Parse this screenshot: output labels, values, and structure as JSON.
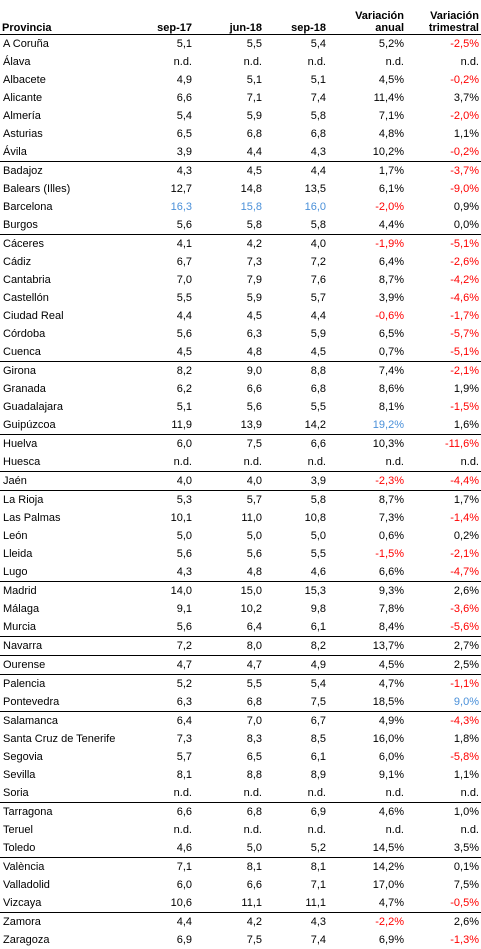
{
  "headers": {
    "provincia": "Provincia",
    "sep17": "sep-17",
    "jun18": "jun-18",
    "sep18": "sep-18",
    "var_anual_1": "Variación",
    "var_anual_2": "anual",
    "var_trim_1": "Variación",
    "var_trim_2": "trimestral"
  },
  "colors": {
    "negative": "#ff0000",
    "highlight": "#4a90d9",
    "text": "#000000"
  },
  "rows": [
    {
      "name": "A Coruña",
      "sep17": "5,1",
      "jun18": "5,5",
      "sep18": "5,4",
      "anual": "5,2%",
      "trim": "-2,5%"
    },
    {
      "name": "Álava",
      "sep17": "n.d.",
      "jun18": "n.d.",
      "sep18": "n.d.",
      "anual": "n.d.",
      "trim": "n.d."
    },
    {
      "name": "Albacete",
      "sep17": "4,9",
      "jun18": "5,1",
      "sep18": "5,1",
      "anual": "4,5%",
      "trim": "-0,2%"
    },
    {
      "name": "Alicante",
      "sep17": "6,6",
      "jun18": "7,1",
      "sep18": "7,4",
      "anual": "11,4%",
      "trim": "3,7%"
    },
    {
      "name": "Almería",
      "sep17": "5,4",
      "jun18": "5,9",
      "sep18": "5,8",
      "anual": "7,1%",
      "trim": "-2,0%"
    },
    {
      "name": "Asturias",
      "sep17": "6,5",
      "jun18": "6,8",
      "sep18": "6,8",
      "anual": "4,8%",
      "trim": "1,1%"
    },
    {
      "name": "Ávila",
      "sep17": "3,9",
      "jun18": "4,4",
      "sep18": "4,3",
      "anual": "10,2%",
      "trim": "-0,2%"
    },
    {
      "name": "Badajoz",
      "sep17": "4,3",
      "jun18": "4,5",
      "sep18": "4,4",
      "anual": "1,7%",
      "trim": "-3,7%"
    },
    {
      "name": "Balears (Illes)",
      "sep17": "12,7",
      "jun18": "14,8",
      "sep18": "13,5",
      "anual": "6,1%",
      "trim": "-9,0%"
    },
    {
      "name": "Barcelona",
      "sep17": "16,3",
      "jun18": "15,8",
      "sep18": "16,0",
      "anual": "-2,0%",
      "trim": "0,9%"
    },
    {
      "name": "Burgos",
      "sep17": "5,6",
      "jun18": "5,8",
      "sep18": "5,8",
      "anual": "4,4%",
      "trim": "0,0%"
    },
    {
      "name": "Cáceres",
      "sep17": "4,1",
      "jun18": "4,2",
      "sep18": "4,0",
      "anual": "-1,9%",
      "trim": "-5,1%"
    },
    {
      "name": "Cádiz",
      "sep17": "6,7",
      "jun18": "7,3",
      "sep18": "7,2",
      "anual": "6,4%",
      "trim": "-2,6%"
    },
    {
      "name": "Cantabria",
      "sep17": "7,0",
      "jun18": "7,9",
      "sep18": "7,6",
      "anual": "8,7%",
      "trim": "-4,2%"
    },
    {
      "name": "Castellón",
      "sep17": "5,5",
      "jun18": "5,9",
      "sep18": "5,7",
      "anual": "3,9%",
      "trim": "-4,6%"
    },
    {
      "name": "Ciudad Real",
      "sep17": "4,4",
      "jun18": "4,5",
      "sep18": "4,4",
      "anual": "-0,6%",
      "trim": "-1,7%"
    },
    {
      "name": "Córdoba",
      "sep17": "5,6",
      "jun18": "6,3",
      "sep18": "5,9",
      "anual": "6,5%",
      "trim": "-5,7%"
    },
    {
      "name": "Cuenca",
      "sep17": "4,5",
      "jun18": "4,8",
      "sep18": "4,5",
      "anual": "0,7%",
      "trim": "-5,1%"
    },
    {
      "name": "Girona",
      "sep17": "8,2",
      "jun18": "9,0",
      "sep18": "8,8",
      "anual": "7,4%",
      "trim": "-2,1%"
    },
    {
      "name": "Granada",
      "sep17": "6,2",
      "jun18": "6,6",
      "sep18": "6,8",
      "anual": "8,6%",
      "trim": "1,9%"
    },
    {
      "name": "Guadalajara",
      "sep17": "5,1",
      "jun18": "5,6",
      "sep18": "5,5",
      "anual": "8,1%",
      "trim": "-1,5%"
    },
    {
      "name": "Guipúzcoa",
      "sep17": "11,9",
      "jun18": "13,9",
      "sep18": "14,2",
      "anual": "19,2%",
      "trim": "1,6%"
    },
    {
      "name": "Huelva",
      "sep17": "6,0",
      "jun18": "7,5",
      "sep18": "6,6",
      "anual": "10,3%",
      "trim": "-11,6%"
    },
    {
      "name": "Huesca",
      "sep17": "n.d.",
      "jun18": "n.d.",
      "sep18": "n.d.",
      "anual": "n.d.",
      "trim": "n.d."
    },
    {
      "name": "Jaén",
      "sep17": "4,0",
      "jun18": "4,0",
      "sep18": "3,9",
      "anual": "-2,3%",
      "trim": "-4,4%"
    },
    {
      "name": "La Rioja",
      "sep17": "5,3",
      "jun18": "5,7",
      "sep18": "5,8",
      "anual": "8,7%",
      "trim": "1,7%"
    },
    {
      "name": "Las Palmas",
      "sep17": "10,1",
      "jun18": "11,0",
      "sep18": "10,8",
      "anual": "7,3%",
      "trim": "-1,4%"
    },
    {
      "name": "León",
      "sep17": "5,0",
      "jun18": "5,0",
      "sep18": "5,0",
      "anual": "0,6%",
      "trim": "0,2%"
    },
    {
      "name": "Lleida",
      "sep17": "5,6",
      "jun18": "5,6",
      "sep18": "5,5",
      "anual": "-1,5%",
      "trim": "-2,1%"
    },
    {
      "name": "Lugo",
      "sep17": "4,3",
      "jun18": "4,8",
      "sep18": "4,6",
      "anual": "6,6%",
      "trim": "-4,7%"
    },
    {
      "name": "Madrid",
      "sep17": "14,0",
      "jun18": "15,0",
      "sep18": "15,3",
      "anual": "9,3%",
      "trim": "2,6%"
    },
    {
      "name": "Málaga",
      "sep17": "9,1",
      "jun18": "10,2",
      "sep18": "9,8",
      "anual": "7,8%",
      "trim": "-3,6%"
    },
    {
      "name": "Murcia",
      "sep17": "5,6",
      "jun18": "6,4",
      "sep18": "6,1",
      "anual": "8,4%",
      "trim": "-5,6%"
    },
    {
      "name": "Navarra",
      "sep17": "7,2",
      "jun18": "8,0",
      "sep18": "8,2",
      "anual": "13,7%",
      "trim": "2,7%"
    },
    {
      "name": "Ourense",
      "sep17": "4,7",
      "jun18": "4,7",
      "sep18": "4,9",
      "anual": "4,5%",
      "trim": "2,5%"
    },
    {
      "name": "Palencia",
      "sep17": "5,2",
      "jun18": "5,5",
      "sep18": "5,4",
      "anual": "4,7%",
      "trim": "-1,1%"
    },
    {
      "name": "Pontevedra",
      "sep17": "6,3",
      "jun18": "6,8",
      "sep18": "7,5",
      "anual": "18,5%",
      "trim": "9,0%"
    },
    {
      "name": "Salamanca",
      "sep17": "6,4",
      "jun18": "7,0",
      "sep18": "6,7",
      "anual": "4,9%",
      "trim": "-4,3%"
    },
    {
      "name": "Santa Cruz de Tenerife",
      "sep17": "7,3",
      "jun18": "8,3",
      "sep18": "8,5",
      "anual": "16,0%",
      "trim": "1,8%"
    },
    {
      "name": "Segovia",
      "sep17": "5,7",
      "jun18": "6,5",
      "sep18": "6,1",
      "anual": "6,0%",
      "trim": "-5,8%"
    },
    {
      "name": "Sevilla",
      "sep17": "8,1",
      "jun18": "8,8",
      "sep18": "8,9",
      "anual": "9,1%",
      "trim": "1,1%"
    },
    {
      "name": "Soria",
      "sep17": "n.d.",
      "jun18": "n.d.",
      "sep18": "n.d.",
      "anual": "n.d.",
      "trim": "n.d."
    },
    {
      "name": "Tarragona",
      "sep17": "6,6",
      "jun18": "6,8",
      "sep18": "6,9",
      "anual": "4,6%",
      "trim": "1,0%"
    },
    {
      "name": "Teruel",
      "sep17": "n.d.",
      "jun18": "n.d.",
      "sep18": "n.d.",
      "anual": "n.d.",
      "trim": "n.d."
    },
    {
      "name": "Toledo",
      "sep17": "4,6",
      "jun18": "5,0",
      "sep18": "5,2",
      "anual": "14,5%",
      "trim": "3,5%"
    },
    {
      "name": "València",
      "sep17": "7,1",
      "jun18": "8,1",
      "sep18": "8,1",
      "anual": "14,2%",
      "trim": "0,1%"
    },
    {
      "name": "Valladolid",
      "sep17": "6,0",
      "jun18": "6,6",
      "sep18": "7,1",
      "anual": "17,0%",
      "trim": "7,5%"
    },
    {
      "name": "Vizcaya",
      "sep17": "10,6",
      "jun18": "11,1",
      "sep18": "11,1",
      "anual": "4,7%",
      "trim": "-0,5%"
    },
    {
      "name": "Zamora",
      "sep17": "4,4",
      "jun18": "4,2",
      "sep18": "4,3",
      "anual": "-2,2%",
      "trim": "2,6%"
    },
    {
      "name": "Zaragoza",
      "sep17": "6,9",
      "jun18": "7,5",
      "sep18": "7,4",
      "anual": "6,9%",
      "trim": "-1,3%"
    }
  ],
  "highlights": {
    "Barcelona": [
      "sep17",
      "jun18",
      "sep18"
    ],
    "Guipúzcoa": [
      "anual"
    ],
    "Pontevedra": [
      "trim"
    ]
  }
}
